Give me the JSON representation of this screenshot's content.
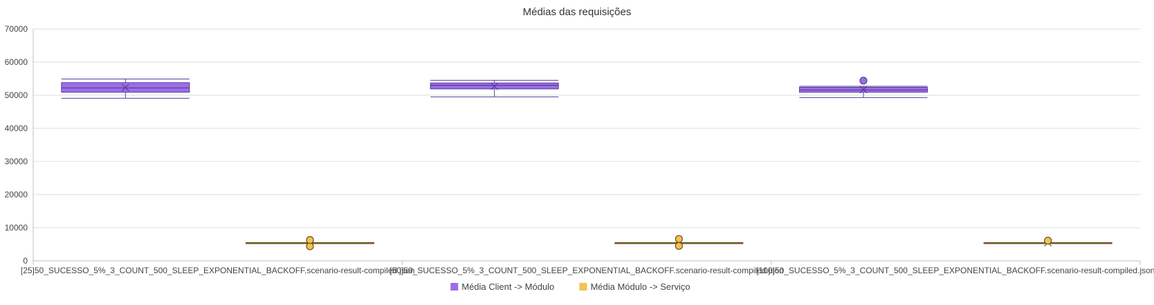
{
  "chart_data": {
    "type": "boxplot",
    "title": "Médias das requisições",
    "ylim": [
      0,
      70000
    ],
    "yticks": [
      0,
      10000,
      20000,
      30000,
      40000,
      50000,
      60000,
      70000
    ],
    "grid": true,
    "legend_position": "bottom",
    "categories": [
      "[25]50_SUCESSO_5%_3_COUNT_500_SLEEP_EXPONENTIAL_BACKOFF.scenario-result-compiled.json",
      "[50]50_SUCESSO_5%_3_COUNT_500_SLEEP_EXPONENTIAL_BACKOFF.scenario-result-compiled.json",
      "[100]50_SUCESSO_5%_3_COUNT_500_SLEEP_EXPONENTIAL_BACKOFF.scenario-result-compiled.json"
    ],
    "series": [
      {
        "name": "Média Client -> Módulo",
        "color": "#9b6ee6",
        "stroke": "#5b3a9a",
        "boxes": [
          {
            "min": 49100,
            "q1": 50900,
            "median": 52200,
            "q3": 53800,
            "max": 54900,
            "mean": 52300,
            "outliers": []
          },
          {
            "min": 49500,
            "q1": 51900,
            "median": 53000,
            "q3": 53700,
            "max": 54500,
            "mean": 52700,
            "outliers": []
          },
          {
            "min": 49300,
            "q1": 50900,
            "median": 51600,
            "q3": 52400,
            "max": 52700,
            "mean": 51700,
            "outliers": [
              54400
            ]
          }
        ]
      },
      {
        "name": "Média Módulo -> Serviço",
        "color": "#f2c34f",
        "stroke": "#6b5120",
        "boxes": [
          {
            "min": 5300,
            "q1": 5300,
            "median": 5400,
            "q3": 5500,
            "max": 5500,
            "mean": 5400,
            "outliers": [
              4400,
              6300
            ]
          },
          {
            "min": 5300,
            "q1": 5300,
            "median": 5400,
            "q3": 5500,
            "max": 5500,
            "mean": 5400,
            "outliers": [
              4500,
              6600
            ]
          },
          {
            "min": 5300,
            "q1": 5300,
            "median": 5400,
            "q3": 5500,
            "max": 5500,
            "mean": 5500,
            "outliers": [
              6100
            ]
          }
        ]
      }
    ]
  }
}
